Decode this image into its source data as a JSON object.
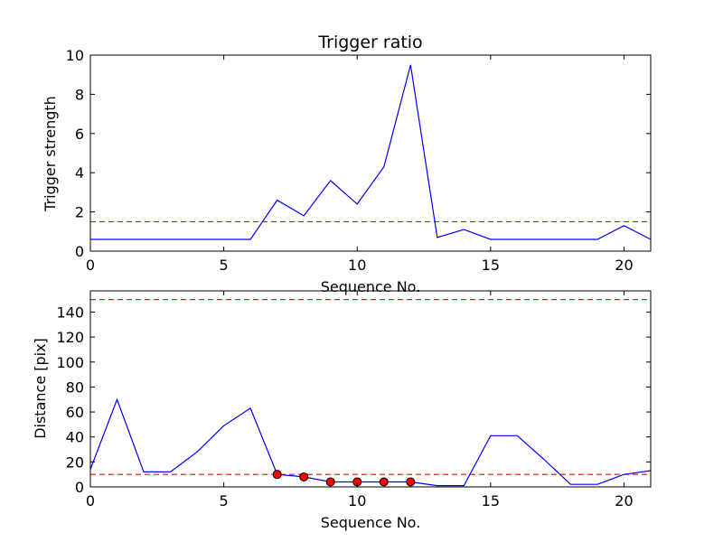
{
  "chart_data": [
    {
      "type": "line",
      "title": "Trigger ratio",
      "xlabel": "Sequence No.",
      "ylabel": "Trigger strength",
      "xlim": [
        0,
        21
      ],
      "ylim": [
        0,
        10
      ],
      "xticks": [
        0,
        5,
        10,
        15,
        20
      ],
      "yticks": [
        0,
        2,
        4,
        6,
        8,
        10
      ],
      "grid": false,
      "series": [
        {
          "color": "#0000ff",
          "x": [
            0,
            1,
            2,
            3,
            4,
            5,
            6,
            7,
            8,
            9,
            10,
            11,
            12,
            13,
            14,
            15,
            16,
            17,
            18,
            19,
            20,
            21
          ],
          "y": [
            0.6,
            0.6,
            0.6,
            0.6,
            0.6,
            0.6,
            0.6,
            2.6,
            1.8,
            3.6,
            2.4,
            4.3,
            9.5,
            0.7,
            1.1,
            0.6,
            0.6,
            0.6,
            0.6,
            0.6,
            1.3,
            0.6
          ]
        }
      ],
      "threshold": {
        "y": 1.5,
        "color": "#ff0000",
        "style": "dashed"
      }
    },
    {
      "type": "line",
      "title": "",
      "xlabel": "Sequence No.",
      "ylabel": "Distance [pix]",
      "xlim": [
        0,
        21
      ],
      "ylim": [
        0,
        157
      ],
      "xticks": [
        0,
        5,
        10,
        15,
        20
      ],
      "yticks": [
        0,
        20,
        40,
        60,
        80,
        100,
        120,
        140
      ],
      "grid": false,
      "series": [
        {
          "color": "#0000ff",
          "x": [
            0,
            1,
            2,
            3,
            4,
            5,
            6,
            7,
            8,
            9,
            10,
            11,
            12,
            13,
            14,
            15,
            16,
            17,
            18,
            19,
            20,
            21
          ],
          "y": [
            14,
            70,
            12,
            12,
            28,
            49,
            63,
            10,
            8,
            4,
            4,
            4,
            4,
            1,
            1,
            41,
            41,
            22,
            2,
            2,
            10,
            13
          ]
        }
      ],
      "markers": {
        "color": "#ff0000",
        "x": [
          7,
          8,
          9,
          10,
          11,
          12
        ],
        "y": [
          10,
          8,
          4,
          4,
          4,
          4
        ]
      },
      "thresholds": [
        {
          "y": 10,
          "color": "#ff0000",
          "style": "dashed"
        },
        {
          "y": 150,
          "color": "#ff0000",
          "style": "dashed"
        }
      ]
    }
  ]
}
